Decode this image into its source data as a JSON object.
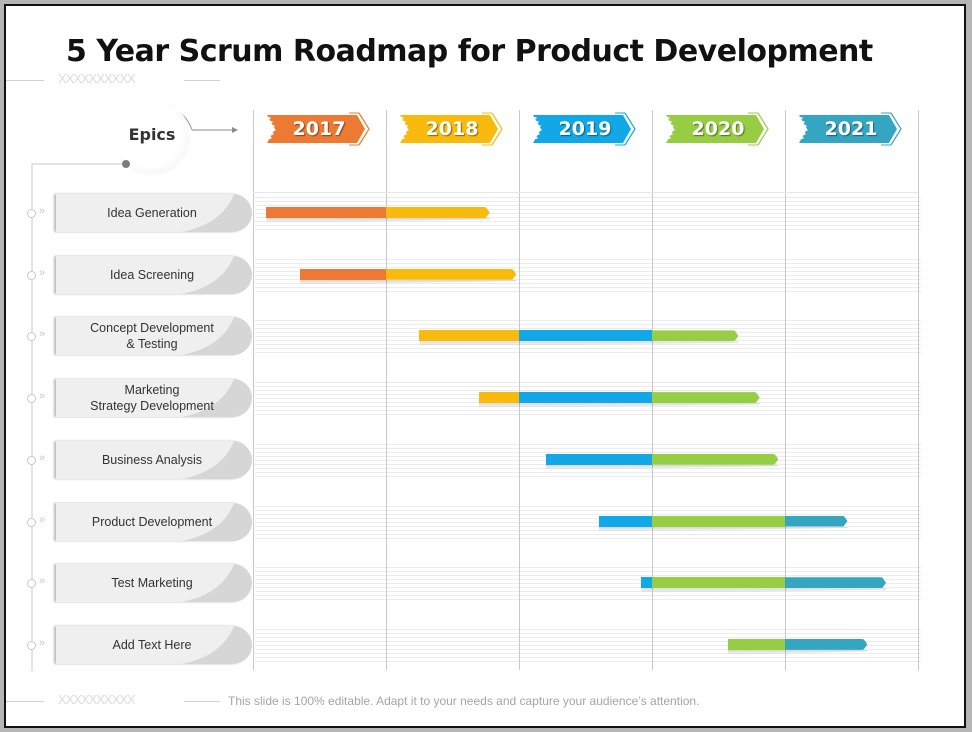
{
  "title": "5 Year Scrum Roadmap for Product Development",
  "decoration_text": "XXXXXXXXXX",
  "epics_label": "Epics",
  "years": [
    {
      "label": "2017",
      "color": "#EC7A33"
    },
    {
      "label": "2018",
      "color": "#F9BA0E"
    },
    {
      "label": "2019",
      "color": "#10A8E6"
    },
    {
      "label": "2020",
      "color": "#97CD42"
    },
    {
      "label": "2021",
      "color": "#34A6C2"
    }
  ],
  "timeline_start_year": 2017,
  "epics": [
    {
      "label": "Idea Generation",
      "start": 2017.1,
      "end": 2018.78
    },
    {
      "label": "Idea Screening",
      "start": 2017.35,
      "end": 2018.98
    },
    {
      "label": "Concept Development\n& Testing",
      "start": 2018.25,
      "end": 2020.65
    },
    {
      "label": "Marketing\nStrategy Development",
      "start": 2018.7,
      "end": 2020.81
    },
    {
      "label": "Business Analysis",
      "start": 2019.2,
      "end": 2020.95
    },
    {
      "label": "Product Development",
      "start": 2019.6,
      "end": 2021.47
    },
    {
      "label": "Test Marketing",
      "start": 2019.92,
      "end": 2021.76
    },
    {
      "label": "Add Text Here",
      "start": 2020.57,
      "end": 2021.62
    }
  ],
  "footer": "This slide is 100% editable. Adapt it to your needs and capture your audience’s attention."
}
